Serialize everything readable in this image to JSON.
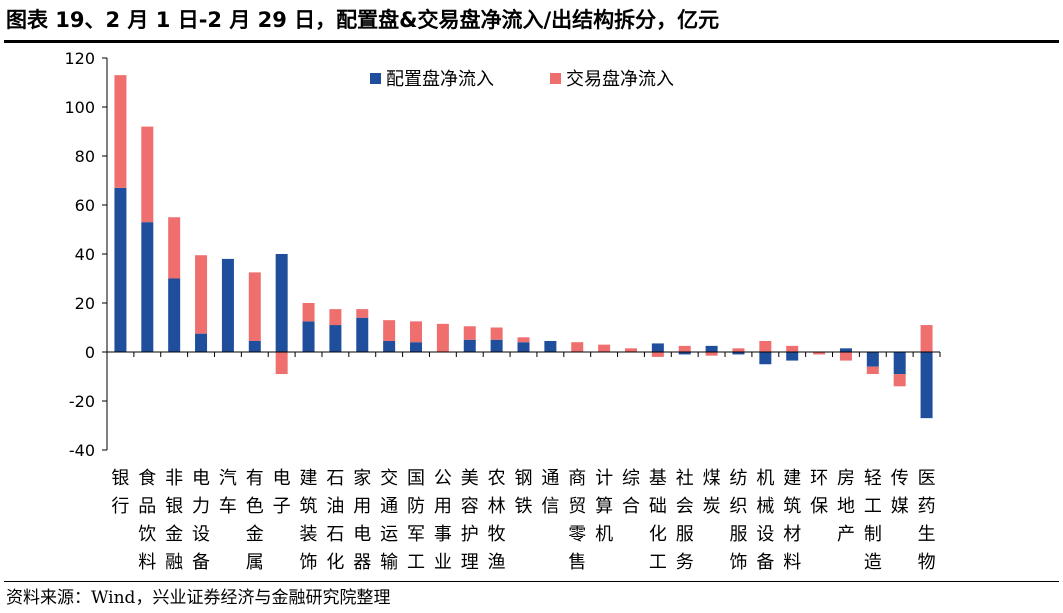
{
  "header": {
    "title": "图表 19、2 月 1 日-2 月 29 日，配置盘&交易盘净流入/出结构拆分，亿元"
  },
  "footer": {
    "source": "资料来源：Wind，兴业证券经济与金融研究院整理"
  },
  "colors": {
    "config": "#1f4e9c",
    "trade": "#ef6f6f"
  },
  "chart_data": {
    "type": "bar",
    "stacked": true,
    "title": "图表 19、2 月 1 日-2 月 29 日，配置盘&交易盘净流入/出结构拆分，亿元",
    "xlabel": "",
    "ylabel": "",
    "ylim": [
      -40,
      120
    ],
    "yticks": [
      -40,
      -20,
      0,
      20,
      40,
      60,
      80,
      100,
      120
    ],
    "grid": false,
    "legend_position": "top-center",
    "categories": [
      "银行",
      "食品饮料",
      "非银金融",
      "电力设备",
      "汽车",
      "有色金属",
      "电子",
      "建筑装饰",
      "石油石化",
      "家用电器",
      "交通运输",
      "国防军工",
      "公用事业",
      "美容护理",
      "农林牧渔",
      "钢铁",
      "通信",
      "商贸零售",
      "计算机",
      "综合",
      "基础化工",
      "社会服务",
      "煤炭",
      "纺织服饰",
      "机械设备",
      "建筑材料",
      "环保",
      "房地产",
      "轻工制造",
      "传媒",
      "医药生物"
    ],
    "series": [
      {
        "name": "配置盘净流入",
        "values": [
          67,
          53,
          30,
          7.5,
          38,
          4.5,
          40,
          12.5,
          11,
          14,
          4.5,
          4,
          0,
          5,
          5,
          4,
          4.5,
          0,
          0,
          0,
          3.5,
          -1,
          2.5,
          -1,
          -5,
          -3.5,
          0,
          1.5,
          -6,
          -9,
          -27
        ]
      },
      {
        "name": "交易盘净流入",
        "values": [
          46,
          39,
          25,
          32,
          0,
          28,
          -9,
          7.5,
          6.5,
          3.5,
          8.5,
          8.5,
          11.5,
          5.5,
          5,
          2,
          0,
          4,
          3,
          1.5,
          -2,
          2.5,
          -1.5,
          1.5,
          4.5,
          2.5,
          -1,
          -3.5,
          -3,
          -5,
          11
        ]
      }
    ]
  }
}
